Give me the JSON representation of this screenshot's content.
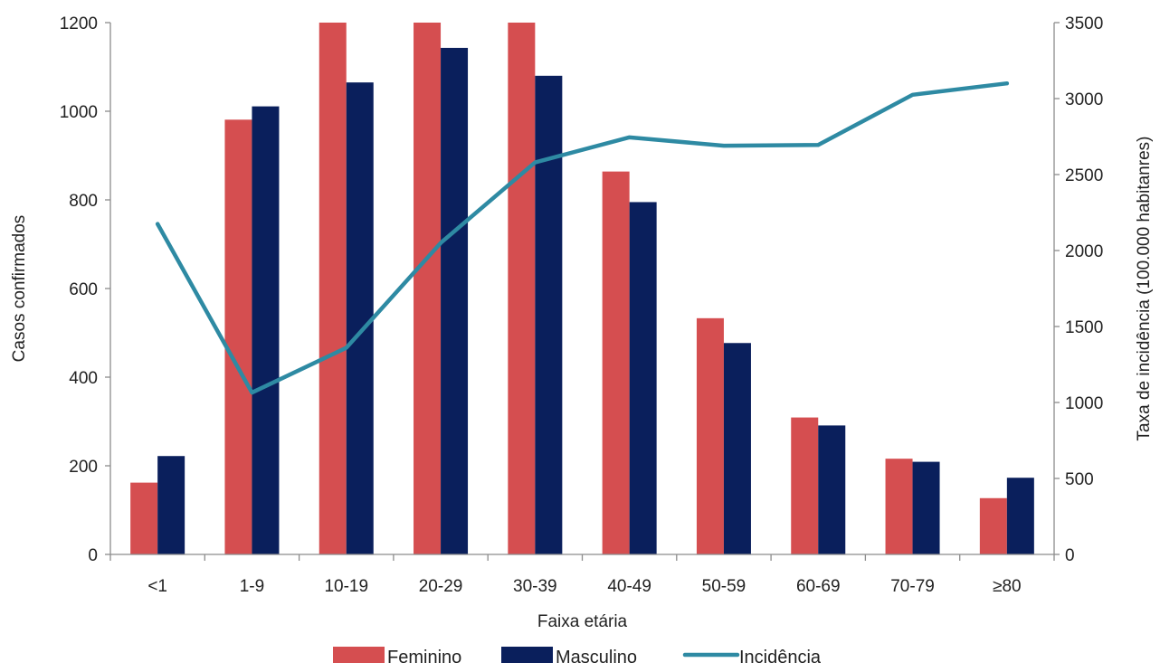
{
  "chart_data": {
    "type": "bar",
    "categories": [
      "<1",
      "1-9",
      "10-19",
      "20-29",
      "30-39",
      "40-49",
      "50-59",
      "60-69",
      "70-79",
      "≥80"
    ],
    "series": [
      {
        "name": "Feminino",
        "kind": "bar",
        "axis": "left",
        "color": "#d54e50",
        "values": [
          162,
          981,
          1200,
          1200,
          1200,
          864,
          533,
          309,
          216,
          127
        ]
      },
      {
        "name": "Masculino",
        "kind": "bar",
        "axis": "left",
        "color": "#0a1f5c",
        "values": [
          222,
          1011,
          1065,
          1143,
          1080,
          795,
          477,
          291,
          209,
          173
        ]
      },
      {
        "name": "Incidência",
        "kind": "line",
        "axis": "right",
        "color": "#2e8aa3",
        "values": [
          2175,
          1065,
          1360,
          2050,
          2580,
          2745,
          2690,
          2695,
          3025,
          3100
        ]
      }
    ],
    "xlabel": "Faixa etária",
    "ylabel": "Casos confirmados",
    "y2label": "Taxa de incidência (100.000 habitanres)",
    "ylim": [
      0,
      1200
    ],
    "y2lim": [
      0,
      3500
    ],
    "yticks": [
      "0",
      "200",
      "400",
      "600",
      "800",
      "1000",
      "1200"
    ],
    "y2ticks": [
      "0",
      "500",
      "1000",
      "1500",
      "2000",
      "2500",
      "3000",
      "3500"
    ],
    "grid": false,
    "legend_position": "bottom"
  }
}
